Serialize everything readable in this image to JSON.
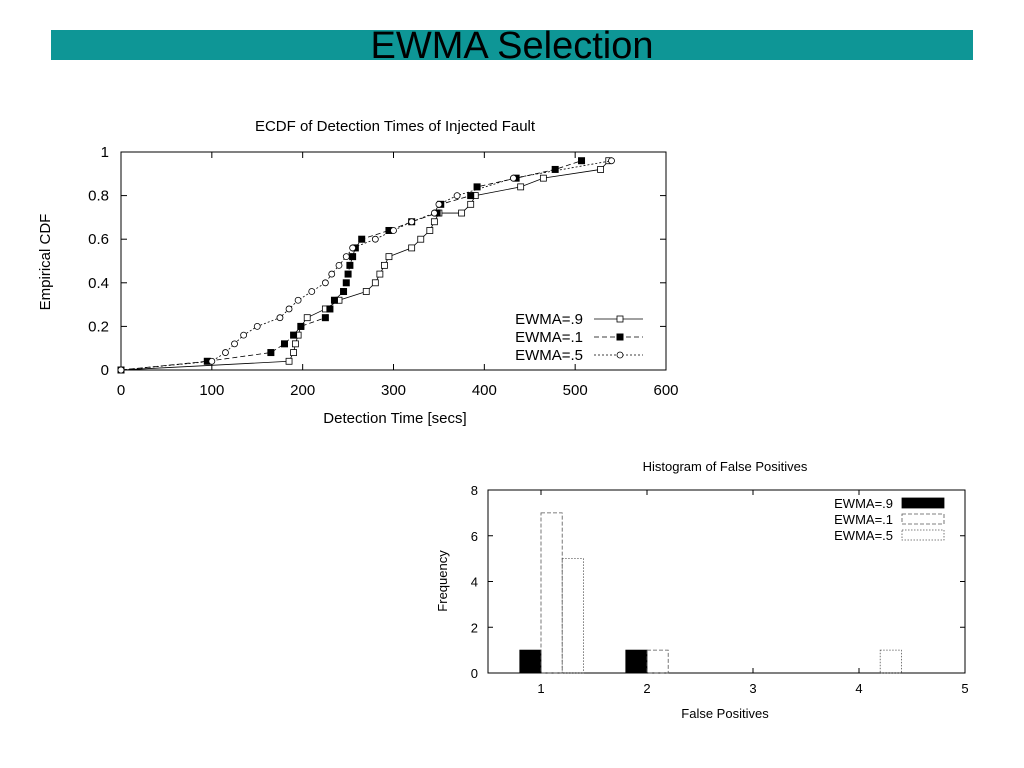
{
  "slide": {
    "title": "EWMA Selection",
    "accent_color": "#0e9696"
  },
  "chart_data": [
    {
      "type": "line",
      "title": "ECDF of Detection Times of Injected Fault",
      "xlabel": "Detection Time [secs]",
      "ylabel": "Empirical CDF",
      "xlim": [
        0,
        600
      ],
      "ylim": [
        0,
        1
      ],
      "xticks": [
        "0",
        "100",
        "200",
        "300",
        "400",
        "500",
        "600"
      ],
      "yticks": [
        "0",
        "0.2",
        "0.4",
        "0.6",
        "0.8",
        "1"
      ],
      "legend_position": "bottom-right",
      "grid": false,
      "series": [
        {
          "name": "EWMA=.9",
          "marker": "open-square",
          "line": "solid",
          "points": [
            [
              0,
              0
            ],
            [
              185,
              0.04
            ],
            [
              190,
              0.08
            ],
            [
              192,
              0.12
            ],
            [
              195,
              0.16
            ],
            [
              198,
              0.2
            ],
            [
              205,
              0.24
            ],
            [
              225,
              0.28
            ],
            [
              240,
              0.32
            ],
            [
              270,
              0.36
            ],
            [
              280,
              0.4
            ],
            [
              285,
              0.44
            ],
            [
              290,
              0.48
            ],
            [
              295,
              0.52
            ],
            [
              320,
              0.56
            ],
            [
              330,
              0.6
            ],
            [
              340,
              0.64
            ],
            [
              345,
              0.68
            ],
            [
              350,
              0.72
            ],
            [
              375,
              0.72
            ],
            [
              385,
              0.76
            ],
            [
              390,
              0.8
            ],
            [
              440,
              0.84
            ],
            [
              465,
              0.88
            ],
            [
              528,
              0.92
            ],
            [
              537,
              0.96
            ]
          ]
        },
        {
          "name": "EWMA=.1",
          "marker": "filled-square",
          "line": "dashed",
          "points": [
            [
              0,
              0
            ],
            [
              95,
              0.04
            ],
            [
              165,
              0.08
            ],
            [
              180,
              0.12
            ],
            [
              190,
              0.16
            ],
            [
              198,
              0.2
            ],
            [
              225,
              0.24
            ],
            [
              230,
              0.28
            ],
            [
              235,
              0.32
            ],
            [
              245,
              0.36
            ],
            [
              248,
              0.4
            ],
            [
              250,
              0.44
            ],
            [
              252,
              0.48
            ],
            [
              255,
              0.52
            ],
            [
              258,
              0.56
            ],
            [
              265,
              0.6
            ],
            [
              295,
              0.64
            ],
            [
              320,
              0.68
            ],
            [
              348,
              0.72
            ],
            [
              352,
              0.76
            ],
            [
              385,
              0.8
            ],
            [
              392,
              0.84
            ],
            [
              435,
              0.88
            ],
            [
              478,
              0.92
            ],
            [
              507,
              0.96
            ]
          ]
        },
        {
          "name": "EWMA=.5",
          "marker": "open-circle",
          "line": "dotted",
          "points": [
            [
              0,
              0
            ],
            [
              100,
              0.04
            ],
            [
              115,
              0.08
            ],
            [
              125,
              0.12
            ],
            [
              135,
              0.16
            ],
            [
              150,
              0.2
            ],
            [
              175,
              0.24
            ],
            [
              185,
              0.28
            ],
            [
              195,
              0.32
            ],
            [
              210,
              0.36
            ],
            [
              225,
              0.4
            ],
            [
              232,
              0.44
            ],
            [
              240,
              0.48
            ],
            [
              248,
              0.52
            ],
            [
              255,
              0.56
            ],
            [
              280,
              0.6
            ],
            [
              300,
              0.64
            ],
            [
              320,
              0.68
            ],
            [
              345,
              0.72
            ],
            [
              350,
              0.76
            ],
            [
              370,
              0.8
            ],
            [
              432,
              0.88
            ],
            [
              540,
              0.96
            ]
          ]
        }
      ]
    },
    {
      "type": "bar",
      "title": "Histogram of False Positives",
      "xlabel": "False Positives",
      "ylabel": "Frequency",
      "xlim": [
        0.5,
        5
      ],
      "ylim": [
        0,
        8
      ],
      "xticks": [
        "1",
        "2",
        "3",
        "4",
        "5"
      ],
      "yticks": [
        "0",
        "2",
        "4",
        "6",
        "8"
      ],
      "legend_position": "top-right",
      "grid": false,
      "categories": [
        1,
        2,
        3,
        4
      ],
      "series": [
        {
          "name": "EWMA=.9",
          "fill": "solid-black",
          "values": [
            1,
            1,
            0,
            0
          ]
        },
        {
          "name": "EWMA=.1",
          "fill": "dashed-outline",
          "values": [
            7,
            1,
            0,
            0
          ]
        },
        {
          "name": "EWMA=.5",
          "fill": "dotted-outline",
          "values": [
            5,
            0,
            0,
            1
          ]
        }
      ]
    }
  ]
}
